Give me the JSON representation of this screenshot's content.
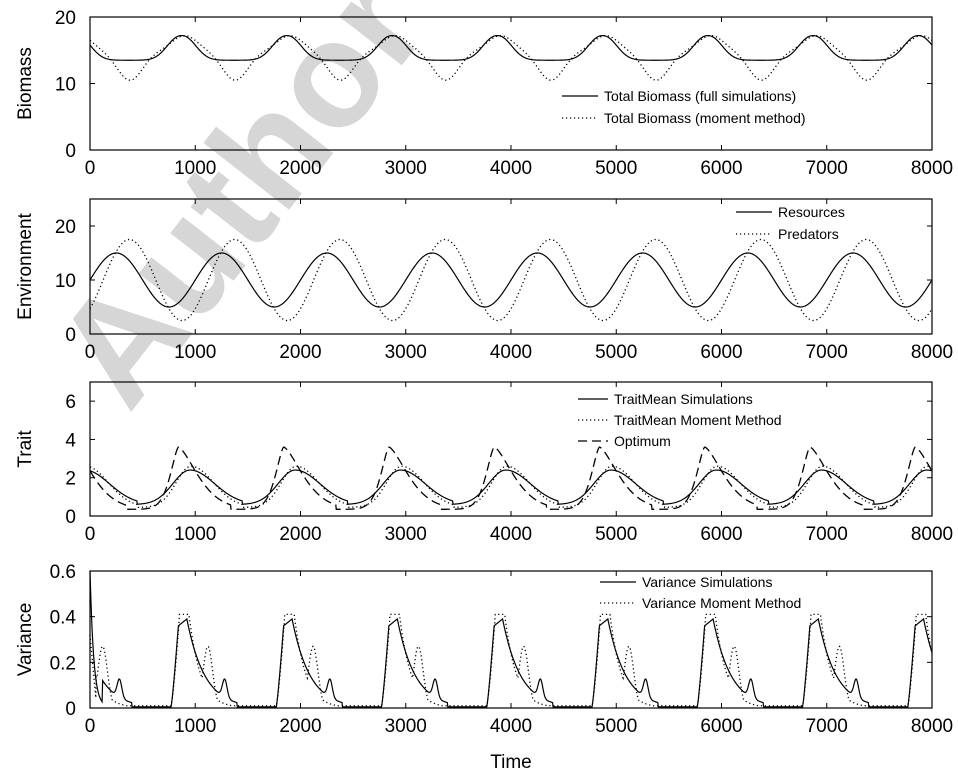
{
  "watermark": "Author's pe",
  "chart_data": [
    {
      "type": "line",
      "ylabel": "Biomass",
      "xlim": [
        0,
        8000
      ],
      "ylim": [
        0,
        20
      ],
      "xticks": [
        0,
        1000,
        2000,
        3000,
        4000,
        5000,
        6000,
        7000,
        8000
      ],
      "yticks": [
        0,
        10,
        20
      ],
      "legend": "upper-right",
      "series": [
        {
          "name": "Total Biomass (full simulations)",
          "style": "solid",
          "model": {
            "kind": "biomass_full",
            "period": 1000,
            "offset": 0,
            "base": 13.5,
            "peak": 17.2,
            "peak_x": 870,
            "width": 180
          }
        },
        {
          "name": "Total Biomass (moment method)",
          "style": "dotted",
          "model": {
            "kind": "biomass_moment",
            "period": 1000,
            "offset": 0,
            "min": 10.5,
            "min_x": 380,
            "max": 17.2,
            "max_x": 900
          }
        }
      ]
    },
    {
      "type": "line",
      "ylabel": "Environment",
      "xlim": [
        0,
        8000
      ],
      "ylim": [
        0,
        25
      ],
      "xticks": [
        0,
        1000,
        2000,
        3000,
        4000,
        5000,
        6000,
        7000,
        8000
      ],
      "yticks": [
        0,
        10,
        20
      ],
      "legend": "upper-right",
      "series": [
        {
          "name": "Resources",
          "style": "solid",
          "model": {
            "kind": "sine",
            "period": 1000,
            "mean": 10,
            "amp": 5,
            "phase_x": 0
          }
        },
        {
          "name": "Predators",
          "style": "dotted",
          "model": {
            "kind": "sine",
            "period": 1000,
            "mean": 10,
            "amp": 7.5,
            "phase_x": 125
          }
        }
      ]
    },
    {
      "type": "line",
      "ylabel": "Trait",
      "xlim": [
        0,
        8000
      ],
      "ylim": [
        0,
        7
      ],
      "xticks": [
        0,
        1000,
        2000,
        3000,
        4000,
        5000,
        6000,
        7000,
        8000
      ],
      "yticks": [
        0,
        2,
        4,
        6
      ],
      "legend": "upper-right",
      "series": [
        {
          "name": "TraitMean Simulations",
          "style": "solid",
          "model": {
            "kind": "trait_mean",
            "period": 1000,
            "base": 0.6,
            "peak": 2.4,
            "peak_x": 950,
            "rise": 230,
            "fall": 330
          }
        },
        {
          "name": "TraitMean Moment Method",
          "style": "dotted",
          "model": {
            "kind": "trait_mean",
            "period": 1000,
            "base": 0.45,
            "peak": 2.6,
            "peak_x": 960,
            "rise": 200,
            "fall": 300
          }
        },
        {
          "name": "Optimum",
          "style": "dashed",
          "model": {
            "kind": "optimum",
            "period": 1000,
            "base": 0.35,
            "peak": 3.6,
            "peak_x": 840,
            "rise": 110,
            "fall": 260
          }
        }
      ]
    },
    {
      "type": "line",
      "ylabel": "Variance",
      "xlabel": "Time",
      "xlim": [
        0,
        8000
      ],
      "ylim": [
        0,
        0.6
      ],
      "xticks": [
        0,
        1000,
        2000,
        3000,
        4000,
        5000,
        6000,
        7000,
        8000
      ],
      "yticks": [
        0,
        0.2,
        0.4,
        0.6
      ],
      "legend": "upper-right",
      "series": [
        {
          "name": "Variance Simulations",
          "style": "solid",
          "model": {
            "kind": "variance_full",
            "period": 1000,
            "peak": 0.39,
            "peak_x": 900,
            "bump": 0.08,
            "bump_x": 1280
          }
        },
        {
          "name": "Variance Moment Method",
          "style": "dotted",
          "model": {
            "kind": "variance_moment",
            "period": 1000,
            "peak": 0.41,
            "peak_x": 880,
            "second": 0.27,
            "second_x": 1120
          }
        }
      ]
    }
  ]
}
